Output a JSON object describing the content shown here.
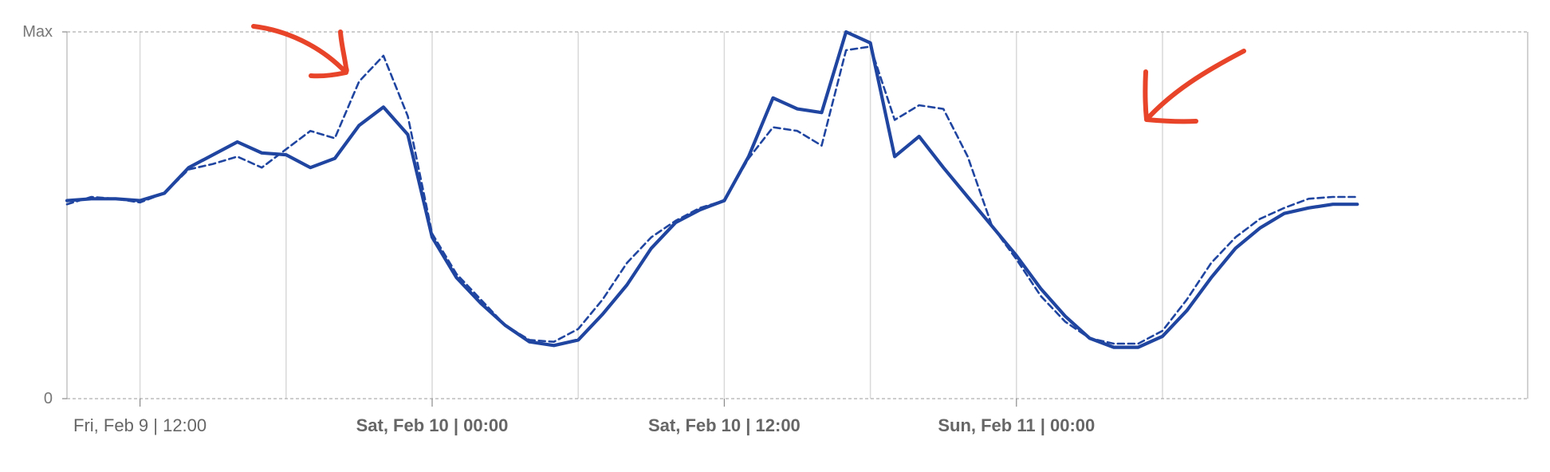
{
  "chart_data": {
    "type": "line",
    "title": "",
    "xlabel": "",
    "ylabel": "",
    "y_axis": {
      "min_label": "0",
      "max_label": "Max",
      "ylim": [
        0,
        1
      ]
    },
    "x_axis": {
      "range": [
        "2024-02-09T09:00",
        "2024-02-11T21:00"
      ],
      "tick_labels": [
        {
          "time": "2024-02-09T12:00",
          "label": "Fri, Feb 9 | 12:00",
          "bold": false
        },
        {
          "time": "2024-02-10T00:00",
          "label": "Sat, Feb 10 | 00:00",
          "bold": true
        },
        {
          "time": "2024-02-10T12:00",
          "label": "Sat, Feb 10 | 12:00",
          "bold": true
        },
        {
          "time": "2024-02-11T00:00",
          "label": "Sun, Feb 11 | 00:00",
          "bold": true
        }
      ],
      "gridlines": [
        "2024-02-09T12:00",
        "2024-02-09T18:00",
        "2024-02-10T00:00",
        "2024-02-10T06:00",
        "2024-02-10T12:00",
        "2024-02-10T18:00",
        "2024-02-11T00:00",
        "2024-02-11T06:00"
      ]
    },
    "grid": true,
    "legend": "none",
    "series": [
      {
        "style": "solid",
        "color": "#1f45a1",
        "points": [
          [
            "2024-02-09T09:00",
            0.54
          ],
          [
            "2024-02-09T10:00",
            0.545
          ],
          [
            "2024-02-09T11:00",
            0.545
          ],
          [
            "2024-02-09T12:00",
            0.54
          ],
          [
            "2024-02-09T13:00",
            0.56
          ],
          [
            "2024-02-09T14:00",
            0.63
          ],
          [
            "2024-02-09T15:00",
            0.665
          ],
          [
            "2024-02-09T16:00",
            0.7
          ],
          [
            "2024-02-09T17:00",
            0.67
          ],
          [
            "2024-02-09T18:00",
            0.665
          ],
          [
            "2024-02-09T19:00",
            0.63
          ],
          [
            "2024-02-09T20:00",
            0.655
          ],
          [
            "2024-02-09T21:00",
            0.745
          ],
          [
            "2024-02-09T22:00",
            0.795
          ],
          [
            "2024-02-09T23:00",
            0.72
          ],
          [
            "2024-02-10T00:00",
            0.44
          ],
          [
            "2024-02-10T01:00",
            0.33
          ],
          [
            "2024-02-10T02:00",
            0.26
          ],
          [
            "2024-02-10T03:00",
            0.2
          ],
          [
            "2024-02-10T04:00",
            0.155
          ],
          [
            "2024-02-10T05:00",
            0.145
          ],
          [
            "2024-02-10T06:00",
            0.16
          ],
          [
            "2024-02-10T07:00",
            0.23
          ],
          [
            "2024-02-10T08:00",
            0.31
          ],
          [
            "2024-02-10T09:00",
            0.41
          ],
          [
            "2024-02-10T10:00",
            0.48
          ],
          [
            "2024-02-10T11:00",
            0.515
          ],
          [
            "2024-02-10T12:00",
            0.54
          ],
          [
            "2024-02-10T13:00",
            0.66
          ],
          [
            "2024-02-10T14:00",
            0.82
          ],
          [
            "2024-02-10T15:00",
            0.79
          ],
          [
            "2024-02-10T16:00",
            0.78
          ],
          [
            "2024-02-10T17:00",
            1.0
          ],
          [
            "2024-02-10T18:00",
            0.97
          ],
          [
            "2024-02-10T19:00",
            0.66
          ],
          [
            "2024-02-10T20:00",
            0.715
          ],
          [
            "2024-02-10T21:00",
            0.63
          ],
          [
            "2024-02-10T22:00",
            0.55
          ],
          [
            "2024-02-10T23:00",
            0.47
          ],
          [
            "2024-02-11T00:00",
            0.39
          ],
          [
            "2024-02-11T01:00",
            0.3
          ],
          [
            "2024-02-11T02:00",
            0.225
          ],
          [
            "2024-02-11T03:00",
            0.165
          ],
          [
            "2024-02-11T04:00",
            0.14
          ],
          [
            "2024-02-11T05:00",
            0.14
          ],
          [
            "2024-02-11T06:00",
            0.17
          ],
          [
            "2024-02-11T07:00",
            0.24
          ],
          [
            "2024-02-11T08:00",
            0.33
          ],
          [
            "2024-02-11T09:00",
            0.41
          ],
          [
            "2024-02-11T10:00",
            0.465
          ],
          [
            "2024-02-11T11:00",
            0.505
          ],
          [
            "2024-02-11T12:00",
            0.52
          ],
          [
            "2024-02-11T13:00",
            0.53
          ],
          [
            "2024-02-11T14:00",
            0.53
          ]
        ]
      },
      {
        "style": "dashed",
        "color": "#1f45a1",
        "points": [
          [
            "2024-02-09T09:00",
            0.53
          ],
          [
            "2024-02-09T10:00",
            0.55
          ],
          [
            "2024-02-09T11:00",
            0.545
          ],
          [
            "2024-02-09T12:00",
            0.535
          ],
          [
            "2024-02-09T13:00",
            0.56
          ],
          [
            "2024-02-09T14:00",
            0.625
          ],
          [
            "2024-02-09T15:00",
            0.64
          ],
          [
            "2024-02-09T16:00",
            0.66
          ],
          [
            "2024-02-09T17:00",
            0.63
          ],
          [
            "2024-02-09T18:00",
            0.68
          ],
          [
            "2024-02-09T19:00",
            0.73
          ],
          [
            "2024-02-09T20:00",
            0.71
          ],
          [
            "2024-02-09T21:00",
            0.865
          ],
          [
            "2024-02-09T22:00",
            0.935
          ],
          [
            "2024-02-09T23:00",
            0.77
          ],
          [
            "2024-02-10T00:00",
            0.45
          ],
          [
            "2024-02-10T01:00",
            0.34
          ],
          [
            "2024-02-10T02:00",
            0.27
          ],
          [
            "2024-02-10T03:00",
            0.2
          ],
          [
            "2024-02-10T04:00",
            0.16
          ],
          [
            "2024-02-10T05:00",
            0.155
          ],
          [
            "2024-02-10T06:00",
            0.19
          ],
          [
            "2024-02-10T07:00",
            0.27
          ],
          [
            "2024-02-10T08:00",
            0.37
          ],
          [
            "2024-02-10T09:00",
            0.44
          ],
          [
            "2024-02-10T10:00",
            0.485
          ],
          [
            "2024-02-10T11:00",
            0.52
          ],
          [
            "2024-02-10T12:00",
            0.54
          ],
          [
            "2024-02-10T13:00",
            0.655
          ],
          [
            "2024-02-10T14:00",
            0.74
          ],
          [
            "2024-02-10T15:00",
            0.73
          ],
          [
            "2024-02-10T16:00",
            0.69
          ],
          [
            "2024-02-10T17:00",
            0.95
          ],
          [
            "2024-02-10T18:00",
            0.96
          ],
          [
            "2024-02-10T19:00",
            0.76
          ],
          [
            "2024-02-10T20:00",
            0.8
          ],
          [
            "2024-02-10T21:00",
            0.79
          ],
          [
            "2024-02-10T22:00",
            0.66
          ],
          [
            "2024-02-10T23:00",
            0.47
          ],
          [
            "2024-02-11T00:00",
            0.38
          ],
          [
            "2024-02-11T01:00",
            0.28
          ],
          [
            "2024-02-11T02:00",
            0.21
          ],
          [
            "2024-02-11T03:00",
            0.165
          ],
          [
            "2024-02-11T04:00",
            0.15
          ],
          [
            "2024-02-11T05:00",
            0.15
          ],
          [
            "2024-02-11T06:00",
            0.185
          ],
          [
            "2024-02-11T07:00",
            0.27
          ],
          [
            "2024-02-11T08:00",
            0.37
          ],
          [
            "2024-02-11T09:00",
            0.44
          ],
          [
            "2024-02-11T10:00",
            0.49
          ],
          [
            "2024-02-11T11:00",
            0.52
          ],
          [
            "2024-02-11T12:00",
            0.545
          ],
          [
            "2024-02-11T13:00",
            0.55
          ],
          [
            "2024-02-11T14:00",
            0.55
          ]
        ]
      }
    ],
    "annotations": [
      {
        "type": "hand-drawn-arrow",
        "color": "#e8442a",
        "points_to": "dashed series peak near Fri, Feb 9 | 22:00"
      },
      {
        "type": "hand-drawn-arrow",
        "color": "#e8442a",
        "points_to": "gap between series near Sat, Feb 10 | 21:00"
      }
    ]
  }
}
